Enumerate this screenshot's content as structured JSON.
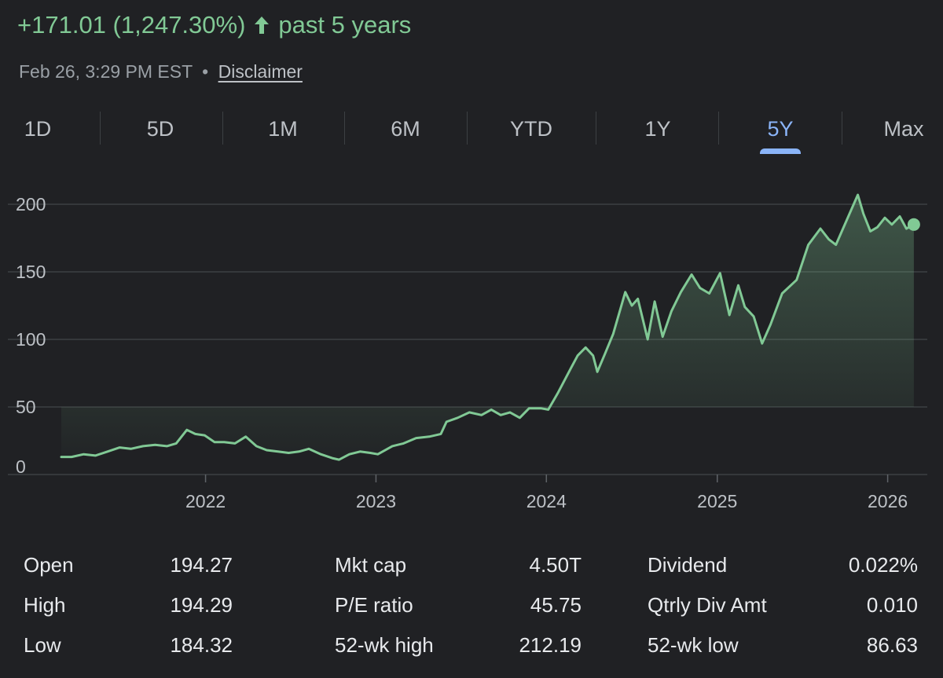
{
  "header": {
    "change_text": "+171.01 (1,247.30%)",
    "period_text": "past 5 years",
    "timestamp": "Feb 26, 3:29 PM EST",
    "separator": "•",
    "disclaimer": "Disclaimer"
  },
  "range_tabs": [
    {
      "label": "1D",
      "active": false
    },
    {
      "label": "5D",
      "active": false
    },
    {
      "label": "1M",
      "active": false
    },
    {
      "label": "6M",
      "active": false
    },
    {
      "label": "YTD",
      "active": false
    },
    {
      "label": "1Y",
      "active": false
    },
    {
      "label": "5Y",
      "active": true
    },
    {
      "label": "Max",
      "active": false
    }
  ],
  "colors": {
    "background": "#202124",
    "positive": "#81c995",
    "accent": "#8ab4f8",
    "gridline": "#3c4043",
    "label": "#bdc1c6"
  },
  "chart_data": {
    "type": "area",
    "x_ticks": [
      "2022",
      "2023",
      "2024",
      "2025",
      "2026"
    ],
    "y_ticks": [
      "0",
      "50",
      "100",
      "150",
      "200"
    ],
    "ylim": [
      0,
      200
    ],
    "xlim": [
      "2021-02-26",
      "2026-03-10"
    ],
    "grid": true,
    "series": [
      {
        "points": [
          [
            "2021-02-26",
            13
          ],
          [
            "2021-03-20",
            13
          ],
          [
            "2021-04-15",
            15
          ],
          [
            "2021-05-10",
            14
          ],
          [
            "2021-06-05",
            17
          ],
          [
            "2021-07-01",
            20
          ],
          [
            "2021-07-25",
            19
          ],
          [
            "2021-08-20",
            21
          ],
          [
            "2021-09-15",
            22
          ],
          [
            "2021-10-10",
            21
          ],
          [
            "2021-10-30",
            23
          ],
          [
            "2021-11-22",
            33
          ],
          [
            "2021-12-10",
            30
          ],
          [
            "2021-12-30",
            29
          ],
          [
            "2022-01-20",
            24
          ],
          [
            "2022-02-10",
            24
          ],
          [
            "2022-03-05",
            23
          ],
          [
            "2022-03-28",
            28
          ],
          [
            "2022-04-20",
            21
          ],
          [
            "2022-05-12",
            18
          ],
          [
            "2022-06-05",
            17
          ],
          [
            "2022-06-28",
            16
          ],
          [
            "2022-07-20",
            17
          ],
          [
            "2022-08-10",
            19
          ],
          [
            "2022-09-05",
            15
          ],
          [
            "2022-10-01",
            12
          ],
          [
            "2022-10-14",
            11
          ],
          [
            "2022-11-05",
            15
          ],
          [
            "2022-11-28",
            17
          ],
          [
            "2022-12-20",
            16
          ],
          [
            "2023-01-05",
            15
          ],
          [
            "2023-02-05",
            21
          ],
          [
            "2023-03-01",
            23
          ],
          [
            "2023-03-28",
            27
          ],
          [
            "2023-04-25",
            28
          ],
          [
            "2023-05-20",
            30
          ],
          [
            "2023-06-01",
            39
          ],
          [
            "2023-06-25",
            42
          ],
          [
            "2023-07-20",
            46
          ],
          [
            "2023-08-15",
            44
          ],
          [
            "2023-09-05",
            48
          ],
          [
            "2023-09-25",
            44
          ],
          [
            "2023-10-15",
            46
          ],
          [
            "2023-11-05",
            42
          ],
          [
            "2023-11-25",
            49
          ],
          [
            "2023-12-20",
            49
          ],
          [
            "2024-01-05",
            48
          ],
          [
            "2024-01-25",
            60
          ],
          [
            "2024-02-23",
            79
          ],
          [
            "2024-03-08",
            88
          ],
          [
            "2024-03-25",
            94
          ],
          [
            "2024-04-10",
            88
          ],
          [
            "2024-04-19",
            76
          ],
          [
            "2024-05-05",
            89
          ],
          [
            "2024-05-23",
            104
          ],
          [
            "2024-06-18",
            135
          ],
          [
            "2024-07-02",
            125
          ],
          [
            "2024-07-15",
            130
          ],
          [
            "2024-08-05",
            100
          ],
          [
            "2024-08-20",
            128
          ],
          [
            "2024-09-06",
            102
          ],
          [
            "2024-09-25",
            121
          ],
          [
            "2024-10-15",
            135
          ],
          [
            "2024-11-07",
            148
          ],
          [
            "2024-11-25",
            138
          ],
          [
            "2024-12-15",
            134
          ],
          [
            "2025-01-07",
            149
          ],
          [
            "2025-01-27",
            118
          ],
          [
            "2025-02-15",
            140
          ],
          [
            "2025-03-01",
            124
          ],
          [
            "2025-03-20",
            117
          ],
          [
            "2025-04-07",
            97
          ],
          [
            "2025-04-25",
            111
          ],
          [
            "2025-05-20",
            134
          ],
          [
            "2025-06-20",
            144
          ],
          [
            "2025-07-15",
            170
          ],
          [
            "2025-08-10",
            182
          ],
          [
            "2025-08-28",
            174
          ],
          [
            "2025-09-12",
            170
          ],
          [
            "2025-10-05",
            188
          ],
          [
            "2025-10-29",
            207
          ],
          [
            "2025-11-10",
            193
          ],
          [
            "2025-11-25",
            180
          ],
          [
            "2025-12-10",
            183
          ],
          [
            "2025-12-26",
            190
          ],
          [
            "2026-01-10",
            185
          ],
          [
            "2026-01-27",
            191
          ],
          [
            "2026-02-10",
            182
          ],
          [
            "2026-02-26",
            185
          ]
        ]
      }
    ]
  },
  "stats": {
    "col1": [
      {
        "label": "Open",
        "value": "194.27"
      },
      {
        "label": "High",
        "value": "194.29"
      },
      {
        "label": "Low",
        "value": "184.32"
      }
    ],
    "col2": [
      {
        "label": "Mkt cap",
        "value": "4.50T"
      },
      {
        "label": "P/E ratio",
        "value": "45.75"
      },
      {
        "label": "52-wk high",
        "value": "212.19"
      }
    ],
    "col3": [
      {
        "label": "Dividend",
        "value": "0.022%"
      },
      {
        "label": "Qtrly Div Amt",
        "value": "0.010"
      },
      {
        "label": "52-wk low",
        "value": "86.63"
      }
    ]
  }
}
